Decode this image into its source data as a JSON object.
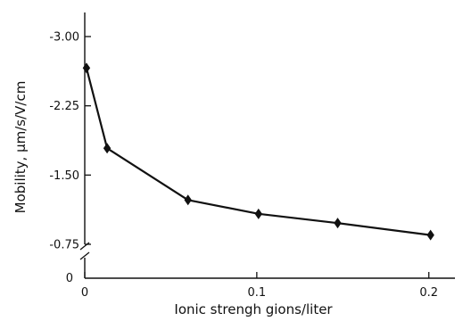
{
  "chart_data": {
    "type": "line",
    "title": "",
    "xlabel": "Ionic strengh gions/liter",
    "ylabel": "Mobility, μm/s/V/cm",
    "xlim": [
      0,
      0.21
    ],
    "ylim": [
      0,
      -3.2
    ],
    "x_ticks": [
      {
        "value": 0,
        "label": "0"
      },
      {
        "value": 0.1,
        "label": "0.1"
      },
      {
        "value": 0.2,
        "label": "0.2"
      }
    ],
    "y_ticks": [
      {
        "value": -0.75,
        "label": "-0.75"
      },
      {
        "value": -1.5,
        "label": "-1.50"
      },
      {
        "value": -2.25,
        "label": "-2.25"
      },
      {
        "value": -3.0,
        "label": "-3.00"
      }
    ],
    "y_origin_label": "0",
    "axis_break": true,
    "grid": false,
    "series": [
      {
        "marker": "diamond",
        "color": "#111111",
        "x": [
          0.001,
          0.013,
          0.06,
          0.101,
          0.147,
          0.201
        ],
        "y": [
          -2.66,
          -1.79,
          -1.23,
          -1.08,
          -0.98,
          -0.85
        ]
      }
    ]
  }
}
